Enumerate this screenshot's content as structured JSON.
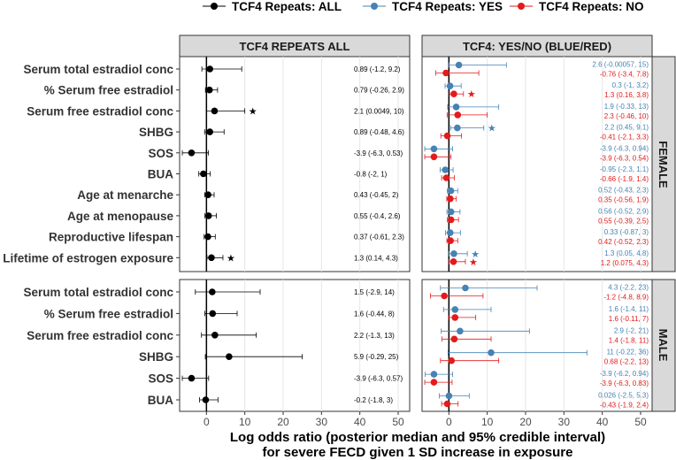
{
  "chart_data": {
    "type": "forest",
    "legend": {
      "items": [
        {
          "label": "TCF4 Repeats: ALL",
          "color": "#000000"
        },
        {
          "label": "TCF4 Repeats: YES",
          "color": "#4682B4"
        },
        {
          "label": "TCF4 Repeats: NO",
          "color": "#E41A1C"
        }
      ],
      "position": "top"
    },
    "columns": [
      "TCF4 REPEATS ALL",
      "TCF4: YES/NO (BLUE/RED)"
    ],
    "facets": [
      "FEMALE",
      "MALE"
    ],
    "x_ticks": [
      0,
      10,
      20,
      30,
      40,
      50
    ],
    "xlim": [
      -7,
      53
    ],
    "xlabel_line1": "Log odds ratio (posterior median and 95% credible interval)",
    "xlabel_line2": "for severe FECD given 1 SD increase in exposure",
    "female": [
      {
        "label": "Serum total estradiol conc",
        "all": {
          "est": 0.89,
          "lo": -1.2,
          "hi": 9.2,
          "text": "0.89 (-1.2, 9.2)",
          "star": false
        },
        "yes": {
          "est": 2.6,
          "lo": -0.00057,
          "hi": 15,
          "text": "2.6 (-0.00057, 15)",
          "star": false
        },
        "no": {
          "est": -0.76,
          "lo": -3.4,
          "hi": 7.8,
          "text": "-0.76 (-3.4, 7.8)",
          "star": false
        }
      },
      {
        "label": "% Serum free estradiol",
        "all": {
          "est": 0.79,
          "lo": -0.26,
          "hi": 2.9,
          "text": "0.79 (-0.26, 2.9)",
          "star": false
        },
        "yes": {
          "est": 0.3,
          "lo": -1,
          "hi": 3.2,
          "text": "0.3 (-1, 3.2)",
          "star": false
        },
        "no": {
          "est": 1.3,
          "lo": 0.16,
          "hi": 3.8,
          "text": "1.3 (0.16, 3.8)",
          "star": true
        }
      },
      {
        "label": "Serum free estradiol conc",
        "all": {
          "est": 2.1,
          "lo": 0.0049,
          "hi": 10,
          "text": "2.1 (0.0049, 10)",
          "star": true
        },
        "yes": {
          "est": 1.9,
          "lo": -0.33,
          "hi": 13,
          "text": "1.9 (-0.33, 13)",
          "star": false
        },
        "no": {
          "est": 2.3,
          "lo": -0.46,
          "hi": 10,
          "text": "2.3 (-0.46, 10)",
          "star": false
        }
      },
      {
        "label": "SHBG",
        "all": {
          "est": 0.89,
          "lo": -0.48,
          "hi": 4.6,
          "text": "0.89 (-0.48, 4.6)",
          "star": false
        },
        "yes": {
          "est": 2.2,
          "lo": 0.45,
          "hi": 9.1,
          "text": "2.2 (0.45, 9.1)",
          "star": true
        },
        "no": {
          "est": -0.41,
          "lo": -2.1,
          "hi": 3.3,
          "text": "-0.41 (-2.1, 3.3)",
          "star": false
        }
      },
      {
        "label": "SOS",
        "all": {
          "est": -3.9,
          "lo": -6.3,
          "hi": 0.53,
          "text": "-3.9 (-6.3, 0.53)",
          "star": false
        },
        "yes": {
          "est": -3.9,
          "lo": -6.3,
          "hi": 0.94,
          "text": "-3.9 (-6.3, 0.94)",
          "star": false
        },
        "no": {
          "est": -3.9,
          "lo": -6.3,
          "hi": 0.54,
          "text": "-3.9 (-6.3, 0.54)",
          "star": false
        }
      },
      {
        "label": "BUA",
        "all": {
          "est": -0.8,
          "lo": -2,
          "hi": 1,
          "text": "-0.8 (-2, 1)",
          "star": false
        },
        "yes": {
          "est": -0.95,
          "lo": -2.3,
          "hi": 1.1,
          "text": "-0.95 (-2.3, 1.1)",
          "star": false
        },
        "no": {
          "est": -0.66,
          "lo": -1.9,
          "hi": 1.4,
          "text": "-0.66 (-1.9, 1.4)",
          "star": false
        }
      },
      {
        "label": "Age at menarche",
        "all": {
          "est": 0.43,
          "lo": -0.45,
          "hi": 2,
          "text": "0.43 (-0.45, 2)",
          "star": false
        },
        "yes": {
          "est": 0.52,
          "lo": -0.43,
          "hi": 2.3,
          "text": "0.52 (-0.43, 2.3)",
          "star": false
        },
        "no": {
          "est": 0.35,
          "lo": -0.56,
          "hi": 1.9,
          "text": "0.35 (-0.56, 1.9)",
          "star": false
        }
      },
      {
        "label": "Age at menopause",
        "all": {
          "est": 0.55,
          "lo": -0.4,
          "hi": 2.6,
          "text": "0.55 (-0.4, 2.6)",
          "star": false
        },
        "yes": {
          "est": 0.56,
          "lo": -0.52,
          "hi": 2.9,
          "text": "0.56 (-0.52, 2.9)",
          "star": false
        },
        "no": {
          "est": 0.55,
          "lo": -0.39,
          "hi": 2.5,
          "text": "0.55 (-0.39, 2.5)",
          "star": false
        }
      },
      {
        "label": "Reproductive lifespan",
        "all": {
          "est": 0.37,
          "lo": -0.61,
          "hi": 2.3,
          "text": "0.37 (-0.61, 2.3)",
          "star": false
        },
        "yes": {
          "est": 0.33,
          "lo": -0.87,
          "hi": 3,
          "text": "0.33 (-0.87, 3)",
          "star": false
        },
        "no": {
          "est": 0.42,
          "lo": -0.52,
          "hi": 2.3,
          "text": "0.42 (-0.52, 2.3)",
          "star": false
        }
      },
      {
        "label": "Lifetime of estrogen exposure",
        "all": {
          "est": 1.3,
          "lo": 0.14,
          "hi": 4.3,
          "text": "1.3 (0.14, 4.3)",
          "star": true
        },
        "yes": {
          "est": 1.3,
          "lo": 0.05,
          "hi": 4.8,
          "text": "1.3 (0.05, 4.8)",
          "star": true
        },
        "no": {
          "est": 1.2,
          "lo": 0.075,
          "hi": 4.3,
          "text": "1.2 (0.075, 4.3)",
          "star": true
        }
      }
    ],
    "male": [
      {
        "label": "Serum total estradiol conc",
        "all": {
          "est": 1.5,
          "lo": -2.9,
          "hi": 14,
          "text": "1.5 (-2.9, 14)",
          "star": false
        },
        "yes": {
          "est": 4.3,
          "lo": -2.2,
          "hi": 23,
          "text": "4.3 (-2.2, 23)",
          "star": false
        },
        "no": {
          "est": -1.2,
          "lo": -4.8,
          "hi": 8.9,
          "text": "-1.2 (-4.8, 8.9)",
          "star": false
        }
      },
      {
        "label": "% Serum free estradiol",
        "all": {
          "est": 1.6,
          "lo": -0.44,
          "hi": 8,
          "text": "1.6 (-0.44, 8)",
          "star": false
        },
        "yes": {
          "est": 1.6,
          "lo": -1.4,
          "hi": 11,
          "text": "1.6 (-1.4, 11)",
          "star": false
        },
        "no": {
          "est": 1.6,
          "lo": -0.11,
          "hi": 7,
          "text": "1.6 (-0.11, 7)",
          "star": false
        }
      },
      {
        "label": "Serum free estradiol conc",
        "all": {
          "est": 2.2,
          "lo": -1.3,
          "hi": 13,
          "text": "2.2 (-1.3, 13)",
          "star": false
        },
        "yes": {
          "est": 2.9,
          "lo": -2,
          "hi": 21,
          "text": "2.9 (-2, 21)",
          "star": false
        },
        "no": {
          "est": 1.4,
          "lo": -1.8,
          "hi": 11,
          "text": "1.4 (-1.8, 11)",
          "star": false
        }
      },
      {
        "label": "SHBG",
        "all": {
          "est": 5.9,
          "lo": -0.29,
          "hi": 25,
          "text": "5.9 (-0.29, 25)",
          "star": false
        },
        "yes": {
          "est": 11,
          "lo": -0.22,
          "hi": 36,
          "text": "11 (-0.22, 36)",
          "star": false
        },
        "no": {
          "est": 0.68,
          "lo": -2.2,
          "hi": 13,
          "text": "0.68 (-2.2, 13)",
          "star": false
        }
      },
      {
        "label": "SOS",
        "all": {
          "est": -3.9,
          "lo": -6.3,
          "hi": 0.57,
          "text": "-3.9 (-6.3, 0.57)",
          "star": false
        },
        "yes": {
          "est": -3.9,
          "lo": -6.2,
          "hi": 0.94,
          "text": "-3.9 (-6.2, 0.94)",
          "star": false
        },
        "no": {
          "est": -3.9,
          "lo": -6.3,
          "hi": 0.83,
          "text": "-3.9 (-6.3, 0.83)",
          "star": false
        }
      },
      {
        "label": "BUA",
        "all": {
          "est": -0.2,
          "lo": -1.8,
          "hi": 3,
          "text": "-0.2 (-1.8, 3)",
          "star": false
        },
        "yes": {
          "est": 0.026,
          "lo": -2.5,
          "hi": 5.3,
          "text": "0.026 (-2.5, 5.3)",
          "star": false
        },
        "no": {
          "est": -0.43,
          "lo": -1.9,
          "hi": 2.4,
          "text": "-0.43 (-1.9, 2.4)",
          "star": false
        }
      }
    ],
    "star_symbol": "★"
  }
}
